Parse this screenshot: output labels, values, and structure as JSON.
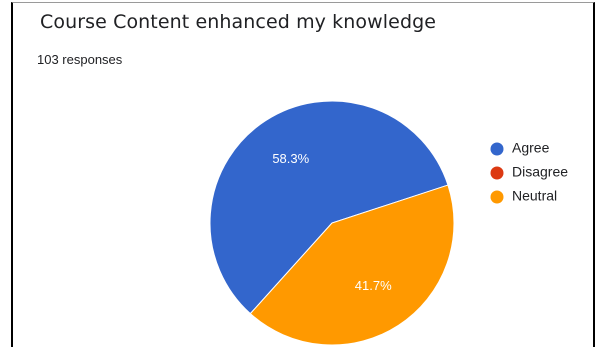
{
  "title": "Course Content enhanced my knowledge",
  "responses_text": "103 responses",
  "chart_data": {
    "type": "pie",
    "title": "Course Content enhanced my knowledge",
    "categories": [
      "Agree",
      "Disagree",
      "Neutral"
    ],
    "values": [
      58.3,
      0,
      41.7
    ],
    "labels": [
      "58.3%",
      "",
      "41.7%"
    ],
    "colors": [
      "#3366cc",
      "#dc3912",
      "#ff9900"
    ],
    "legend_position": "right"
  }
}
